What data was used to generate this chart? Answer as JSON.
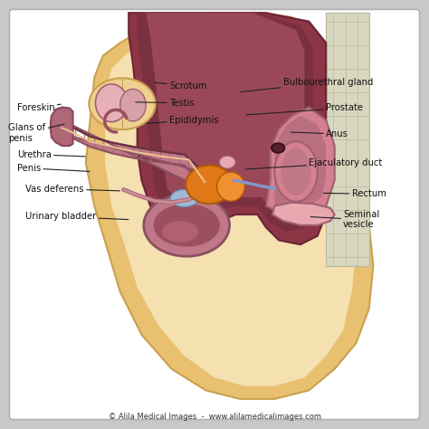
{
  "background_color": "#c8c8c8",
  "panel_color": "#ffffff",
  "copyright_text": "© Alila Medical Images  -  www.alilamedicalimages.com",
  "skin_tan": "#e8c070",
  "skin_light": "#f0d090",
  "skin_lighter": "#f5e0b0",
  "abdom_dark": "#8b3545",
  "abdom_med": "#a04055",
  "abdom_light": "#c06070",
  "pink_organ": "#d48090",
  "pink_light": "#e8a8b0",
  "rectum_dark": "#7a3040",
  "bladder_wall": "#c07888",
  "bladder_inner": "#9a5060",
  "orange_prostate": "#e07818",
  "orange_prostate2": "#f09030",
  "blue_duct": "#8098c8",
  "spine_color": "#d8d8c0",
  "spine_line": "#b8b898",
  "label_fontsize": 7.2,
  "copyright_fontsize": 6.0,
  "arrow_color": "#222222",
  "labels_left": [
    {
      "text": "Urinary bladder",
      "xt": 0.06,
      "yt": 0.495,
      "xa": 0.305,
      "ya": 0.488
    },
    {
      "text": "Vas deferens",
      "xt": 0.06,
      "yt": 0.56,
      "xa": 0.285,
      "ya": 0.555
    },
    {
      "text": "Penis",
      "xt": 0.04,
      "yt": 0.608,
      "xa": 0.215,
      "ya": 0.6
    },
    {
      "text": "Urethra",
      "xt": 0.04,
      "yt": 0.64,
      "xa": 0.205,
      "ya": 0.635
    },
    {
      "text": "Glans of\npenis",
      "xt": 0.02,
      "yt": 0.69,
      "xa": 0.155,
      "ya": 0.712
    },
    {
      "text": "Foreskin",
      "xt": 0.04,
      "yt": 0.748,
      "xa": 0.148,
      "ya": 0.758
    }
  ],
  "labels_center": [
    {
      "text": "Epididymis",
      "xt": 0.395,
      "yt": 0.72,
      "xa": 0.335,
      "ya": 0.712
    },
    {
      "text": "Testis",
      "xt": 0.395,
      "yt": 0.76,
      "xa": 0.31,
      "ya": 0.762
    },
    {
      "text": "Scrotum",
      "xt": 0.395,
      "yt": 0.8,
      "xa": 0.355,
      "ya": 0.808
    }
  ],
  "labels_right": [
    {
      "text": "Seminal\nvesicle",
      "xt": 0.8,
      "yt": 0.488,
      "xa": 0.718,
      "ya": 0.495
    },
    {
      "text": "Rectum",
      "xt": 0.82,
      "yt": 0.548,
      "xa": 0.748,
      "ya": 0.55
    },
    {
      "text": "Ejaculatory duct",
      "xt": 0.72,
      "yt": 0.62,
      "xa": 0.565,
      "ya": 0.605
    },
    {
      "text": "Anus",
      "xt": 0.76,
      "yt": 0.688,
      "xa": 0.672,
      "ya": 0.692
    },
    {
      "text": "Prostate",
      "xt": 0.76,
      "yt": 0.748,
      "xa": 0.568,
      "ya": 0.732
    },
    {
      "text": "Bulbourethral gland",
      "xt": 0.66,
      "yt": 0.808,
      "xa": 0.555,
      "ya": 0.785
    }
  ]
}
